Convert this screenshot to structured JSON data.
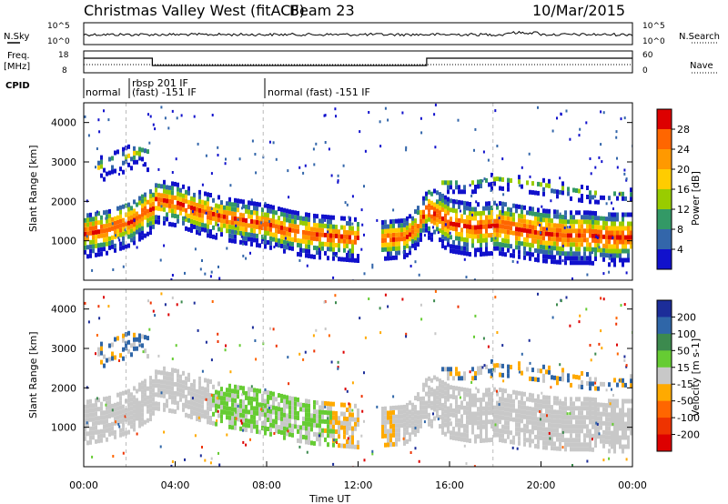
{
  "header": {
    "station": "Christmas Valley West (fitACF)",
    "beam": "Beam 23",
    "date": "10/Mar/2015"
  },
  "top_panels": {
    "nsky_label": "N.Sky",
    "nsearch_label": "N.Search",
    "noise_ticks_left": [
      "10^5",
      "10^0"
    ],
    "noise_ticks_right": [
      "10^5",
      "10^0"
    ],
    "freq_label_1": "Freq.",
    "freq_label_2": "[MHz]",
    "freq_ticks": [
      "18",
      "8"
    ],
    "nave_label": "Nave",
    "nave_ticks": [
      "60",
      "0"
    ],
    "cpid_label": "CPID",
    "cpid_segments": [
      {
        "label": "normal",
        "start": 0.0
      },
      {
        "label": "rbsp 201 IF",
        "start": 2.0
      },
      {
        "label": "(fast) -151 IF",
        "start": 2.0
      },
      {
        "label": "normal (fast) -151 IF",
        "start": 8.0
      }
    ]
  },
  "power_colorbar": {
    "label": "Power [dB]",
    "ticks": [
      "28",
      "24",
      "20",
      "16",
      "12",
      "8",
      "4"
    ],
    "colors": [
      "#dd0000",
      "#ff6600",
      "#ff9900",
      "#ffcc00",
      "#99cc00",
      "#339966",
      "#3366aa",
      "#1111cc"
    ]
  },
  "velocity_colorbar": {
    "label": "Velocity [m s-1]",
    "ticks": [
      "200",
      "100",
      "50",
      "15",
      "-15",
      "-50",
      "-100",
      "-200"
    ],
    "colors": [
      "#1c2d99",
      "#2f66a8",
      "#3c8a4e",
      "#66cc33",
      "#c8c8c8",
      "#ffaa00",
      "#ff6600",
      "#ee3300",
      "#dd0000"
    ]
  },
  "chart_data": [
    {
      "type": "heatmap",
      "name": "power",
      "ylabel": "Slant Range [km]",
      "ylim": [
        0,
        4500
      ],
      "yticks": [
        1000,
        2000,
        3000,
        4000
      ],
      "xlim": [
        0,
        24
      ],
      "series": [
        {
          "band_center": [
            [
              0,
              1250
            ],
            [
              1,
              1350
            ],
            [
              2,
              1550
            ],
            [
              2.8,
              1850
            ],
            [
              3,
              1900
            ]
          ],
          "width": 600
        },
        {
          "band_center": [
            [
              3,
              2100
            ],
            [
              4,
              2000
            ],
            [
              5,
              1800
            ],
            [
              6,
              1650
            ],
            [
              7,
              1550
            ],
            [
              8,
              1450
            ],
            [
              9,
              1300
            ],
            [
              10,
              1200
            ],
            [
              11,
              1150
            ],
            [
              12,
              1100
            ]
          ],
          "width": 550
        },
        {
          "band_center": [
            [
              13,
              1100
            ],
            [
              14,
              1150
            ],
            [
              14.5,
              1400
            ],
            [
              15,
              1900
            ]
          ],
          "width": 500
        },
        {
          "band_center": [
            [
              15,
              1850
            ],
            [
              16,
              1500
            ],
            [
              17,
              1400
            ],
            [
              18,
              1450
            ],
            [
              19,
              1350
            ],
            [
              20,
              1250
            ],
            [
              21,
              1200
            ],
            [
              22,
              1200
            ],
            [
              23,
              1150
            ],
            [
              24,
              1150
            ]
          ],
          "width": 700
        },
        {
          "band_center": [
            [
              0.5,
              2900
            ],
            [
              1.5,
              3100
            ],
            [
              2.2,
              3300
            ],
            [
              2.8,
              3200
            ]
          ],
          "width": 350
        },
        {
          "band_center": [
            [
              15.5,
              2500
            ],
            [
              17,
              2500
            ],
            [
              18,
              2600
            ],
            [
              20,
              2450
            ],
            [
              22,
              2250
            ],
            [
              24,
              2200
            ]
          ],
          "width": 200
        }
      ]
    },
    {
      "type": "heatmap",
      "name": "velocity",
      "ylabel": "Slant Range [km]",
      "ylim": [
        0,
        4500
      ],
      "yticks": [
        1000,
        2000,
        3000,
        4000
      ],
      "xlim": [
        0,
        24
      ]
    }
  ],
  "xaxis": {
    "label": "Time UT",
    "ticks": [
      "00:00",
      "04:00",
      "08:00",
      "12:00",
      "16:00",
      "20:00",
      "00:00"
    ]
  }
}
